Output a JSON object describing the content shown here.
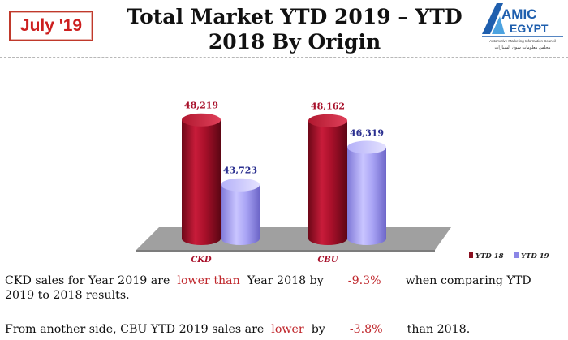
{
  "badge": "July '19",
  "title_line1": "Total Market YTD 2019 – YTD",
  "title_line2": "2018 By Origin",
  "logo": {
    "word1": "AMIC",
    "word2": "EGYPT",
    "tagline": "Automotive Marketing Information Council",
    "arabic": "مجلس معلومات سوق السيارات",
    "colors": {
      "blue": "#1f5fae",
      "light": "#4da3e0"
    }
  },
  "chart_data": {
    "type": "bar",
    "categories": [
      "CKD",
      "CBU"
    ],
    "series": [
      {
        "name": "YTD 18",
        "values": [
          48219,
          48162
        ],
        "color": "#a8102a",
        "labels": [
          "48,219",
          "48,162"
        ]
      },
      {
        "name": "YTD 19",
        "values": [
          43723,
          46319
        ],
        "color": "#a9a4f5",
        "labels": [
          "43,723",
          "46,319"
        ]
      }
    ],
    "ylim": [
      40000,
      50000
    ],
    "legend_position": "bottom-right"
  },
  "paragraph1": {
    "line1": {
      "a": "CKD sales for Year 2019 are",
      "b": "lower than",
      "c": "Year 2018 by",
      "d": "-9.3%",
      "e": "when comparing YTD"
    },
    "line2": "2019 to 2018 results."
  },
  "paragraph2": {
    "a": "From another side, CBU YTD 2019 sales are",
    "b": "lower",
    "c": "by",
    "d": "-3.8%",
    "e": "than 2018."
  }
}
